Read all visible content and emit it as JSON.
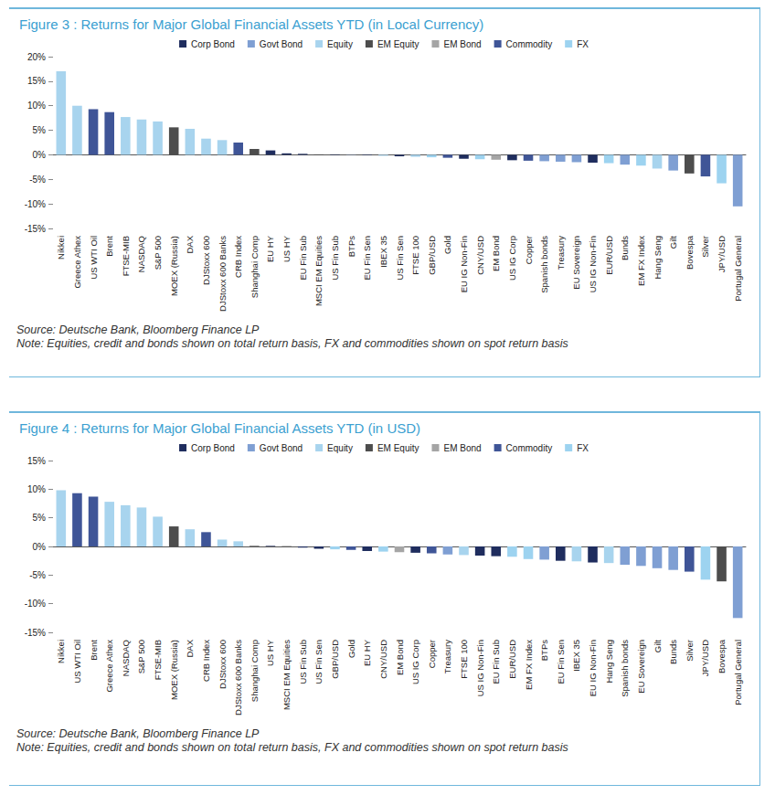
{
  "chart_data": [
    {
      "type": "bar",
      "title": "Figure 3 : Returns for Major Global Financial Assets YTD (in Local Currency)",
      "categories": [
        "Nikkei",
        "Greece Athex",
        "US WTI Oil",
        "Brent",
        "FTSE-MIB",
        "NASDAQ",
        "S&P 500",
        "MOEX (Russia)",
        "DAX",
        "DJStoxx 600",
        "DJStoxx 600 Banks",
        "CRB Index",
        "Shanghai Comp",
        "EU HY",
        "US HY",
        "EU Fin Sub",
        "MSCI EM Equities",
        "US Fin Sub",
        "BTPs",
        "EU Fin Sen",
        "IBEX 35",
        "US Fin Sen",
        "FTSE 100",
        "GBP/USD",
        "Gold",
        "EU IG Non-Fin",
        "CNY/USD",
        "EM Bond",
        "US IG Corp",
        "Copper",
        "Spanish bonds",
        "Treasury",
        "EU Sovereign",
        "US IG Non-Fin",
        "EUR/USD",
        "Bunds",
        "EM FX Index",
        "Hang Seng",
        "Gilt",
        "Bovespa",
        "Silver",
        "JPY/USD",
        "Portugal General"
      ],
      "series": [
        {
          "name": "Corp Bond",
          "color": "#1f2d5e",
          "values": [
            null,
            null,
            null,
            null,
            null,
            null,
            null,
            null,
            null,
            null,
            null,
            null,
            null,
            0.9,
            0.3,
            0.2,
            null,
            0.1,
            null,
            -0.1,
            null,
            -0.3,
            null,
            null,
            null,
            -0.8,
            null,
            null,
            -1.1,
            null,
            null,
            null,
            null,
            -1.6,
            null,
            null,
            null,
            null,
            null,
            null,
            null,
            null,
            null
          ]
        },
        {
          "name": "Govt Bond",
          "color": "#7f9fd3",
          "values": [
            null,
            null,
            null,
            null,
            null,
            null,
            null,
            null,
            null,
            null,
            null,
            null,
            null,
            null,
            null,
            null,
            null,
            null,
            0.05,
            null,
            null,
            null,
            null,
            null,
            null,
            null,
            null,
            null,
            null,
            null,
            -1.3,
            -1.4,
            -1.5,
            null,
            null,
            -2.0,
            null,
            null,
            -3.2,
            null,
            null,
            null,
            -10.5
          ]
        },
        {
          "name": "Equity",
          "color": "#a8d4ee",
          "values": [
            17,
            10,
            null,
            null,
            7.7,
            7.2,
            6.8,
            null,
            5.3,
            3.3,
            3.0,
            null,
            null,
            null,
            null,
            null,
            null,
            null,
            null,
            null,
            -0.2,
            null,
            -0.4,
            null,
            null,
            null,
            null,
            null,
            null,
            null,
            null,
            null,
            null,
            null,
            null,
            null,
            null,
            -2.8,
            null,
            null,
            null,
            null,
            null
          ]
        },
        {
          "name": "EM Equity",
          "color": "#4d4d4d",
          "values": [
            null,
            null,
            null,
            null,
            null,
            null,
            null,
            5.6,
            null,
            null,
            null,
            null,
            1.2,
            null,
            null,
            null,
            0.1,
            null,
            null,
            null,
            null,
            null,
            null,
            null,
            null,
            null,
            null,
            null,
            null,
            null,
            null,
            null,
            null,
            null,
            null,
            null,
            null,
            null,
            null,
            -3.8,
            null,
            null,
            null
          ]
        },
        {
          "name": "EM Bond",
          "color": "#a5a5a5",
          "values": [
            null,
            null,
            null,
            null,
            null,
            null,
            null,
            null,
            null,
            null,
            null,
            null,
            null,
            null,
            null,
            null,
            null,
            null,
            null,
            null,
            null,
            null,
            null,
            null,
            null,
            null,
            null,
            -1.0,
            null,
            null,
            null,
            null,
            null,
            null,
            null,
            null,
            null,
            null,
            null,
            null,
            null,
            null,
            null
          ]
        },
        {
          "name": "Commodity",
          "color": "#3f5597",
          "values": [
            null,
            null,
            9.3,
            8.7,
            null,
            null,
            null,
            null,
            null,
            null,
            null,
            2.5,
            null,
            null,
            null,
            null,
            null,
            null,
            null,
            null,
            null,
            null,
            null,
            null,
            -0.6,
            null,
            null,
            null,
            null,
            -1.2,
            null,
            null,
            null,
            null,
            null,
            null,
            null,
            null,
            null,
            null,
            -4.4,
            null,
            null
          ]
        },
        {
          "name": "FX",
          "color": "#9dd3f0",
          "values": [
            null,
            null,
            null,
            null,
            null,
            null,
            null,
            null,
            null,
            null,
            null,
            null,
            null,
            null,
            null,
            null,
            null,
            null,
            null,
            null,
            null,
            null,
            null,
            -0.5,
            null,
            null,
            -0.9,
            null,
            null,
            null,
            null,
            null,
            null,
            null,
            -1.7,
            null,
            -2.2,
            null,
            null,
            null,
            null,
            -5.8,
            null
          ]
        }
      ],
      "ylim": [
        -15,
        20
      ],
      "yticks": [
        {
          "value": -15,
          "label": "-15%"
        },
        {
          "value": -10,
          "label": "-10%"
        },
        {
          "value": -5,
          "label": "-5%"
        },
        {
          "value": 0,
          "label": "0%"
        },
        {
          "value": 5,
          "label": "5%"
        },
        {
          "value": 10,
          "label": "10%"
        },
        {
          "value": 15,
          "label": "15%"
        },
        {
          "value": 20,
          "label": "20%"
        }
      ],
      "grid": false,
      "legend": "top",
      "stacked": true,
      "annotations": [
        "Source: Deutsche Bank, Bloomberg Finance LP",
        "Note: Equities, credit and bonds shown on total return basis, FX and commodities shown on spot return basis"
      ]
    },
    {
      "type": "bar",
      "title": "Figure 4 : Returns for Major Global Financial Assets YTD (in USD)",
      "categories": [
        "Nikkei",
        "US WTI Oil",
        "Brent",
        "Greece Athex",
        "NASDAQ",
        "S&P 500",
        "FTSE-MIB",
        "MOEX (Russia)",
        "DAX",
        "CRB Index",
        "DJStoxx 600",
        "DJStoxx 600 Banks",
        "Shanghai Comp",
        "US HY",
        "MSCI EM Equities",
        "US Fin Sub",
        "US Fin Sen",
        "GBP/USD",
        "Gold",
        "EU HY",
        "CNY/USD",
        "EM Bond",
        "US IG Corp",
        "Copper",
        "Treasury",
        "FTSE 100",
        "US IG Non-Fin",
        "EU Fin Sub",
        "EUR/USD",
        "EM FX Index",
        "BTPs",
        "EU Fin Sen",
        "IBEX 35",
        "EU IG Non-Fin",
        "Hang Seng",
        "Spanish bonds",
        "EU Sovereign",
        "Gilt",
        "Bunds",
        "Silver",
        "JPY/USD",
        "Bovespa",
        "Portugal General"
      ],
      "series": [
        {
          "name": "Corp Bond",
          "color": "#1f2d5e",
          "values": [
            null,
            null,
            null,
            null,
            null,
            null,
            null,
            null,
            null,
            null,
            null,
            null,
            null,
            0.1,
            null,
            -0.2,
            -0.4,
            null,
            null,
            -0.8,
            null,
            null,
            -1.1,
            null,
            null,
            null,
            -1.6,
            -1.7,
            null,
            null,
            null,
            -2.5,
            null,
            -2.8,
            null,
            null,
            null,
            null,
            null,
            null,
            null,
            null,
            null
          ]
        },
        {
          "name": "Govt Bond",
          "color": "#7f9fd3",
          "values": [
            null,
            null,
            null,
            null,
            null,
            null,
            null,
            null,
            null,
            null,
            null,
            null,
            null,
            null,
            null,
            null,
            null,
            null,
            null,
            null,
            null,
            null,
            null,
            null,
            -1.4,
            null,
            null,
            null,
            null,
            null,
            -2.3,
            null,
            null,
            null,
            null,
            -3.2,
            -3.4,
            -3.8,
            -4.1,
            null,
            null,
            null,
            -12.5
          ]
        },
        {
          "name": "Equity",
          "color": "#a8d4ee",
          "values": [
            9.8,
            null,
            null,
            7.8,
            7.2,
            6.8,
            5.2,
            null,
            3.0,
            null,
            1.2,
            0.9,
            null,
            null,
            null,
            null,
            null,
            null,
            null,
            null,
            null,
            null,
            null,
            null,
            null,
            -1.5,
            null,
            null,
            null,
            null,
            null,
            null,
            -2.6,
            null,
            -2.9,
            null,
            null,
            null,
            null,
            null,
            null,
            null,
            null
          ]
        },
        {
          "name": "EM Equity",
          "color": "#4d4d4d",
          "values": [
            null,
            null,
            null,
            null,
            null,
            null,
            null,
            3.5,
            null,
            null,
            null,
            null,
            0.1,
            null,
            0.05,
            null,
            null,
            null,
            null,
            null,
            null,
            null,
            null,
            null,
            null,
            null,
            null,
            null,
            null,
            null,
            null,
            null,
            null,
            null,
            null,
            null,
            null,
            null,
            null,
            null,
            null,
            -6.1,
            null
          ]
        },
        {
          "name": "EM Bond",
          "color": "#a5a5a5",
          "values": [
            null,
            null,
            null,
            null,
            null,
            null,
            null,
            null,
            null,
            null,
            null,
            null,
            null,
            null,
            null,
            null,
            null,
            null,
            null,
            null,
            null,
            -1.0,
            null,
            null,
            null,
            null,
            null,
            null,
            null,
            null,
            null,
            null,
            null,
            null,
            null,
            null,
            null,
            null,
            null,
            null,
            null,
            null,
            null
          ]
        },
        {
          "name": "Commodity",
          "color": "#3f5597",
          "values": [
            null,
            9.3,
            8.7,
            null,
            null,
            null,
            null,
            null,
            null,
            2.5,
            null,
            null,
            null,
            null,
            null,
            null,
            null,
            null,
            -0.6,
            null,
            null,
            null,
            null,
            -1.2,
            null,
            null,
            null,
            null,
            null,
            null,
            null,
            null,
            null,
            null,
            null,
            null,
            null,
            null,
            null,
            -4.4,
            null,
            null,
            null
          ]
        },
        {
          "name": "FX",
          "color": "#9dd3f0",
          "values": [
            null,
            null,
            null,
            null,
            null,
            null,
            null,
            null,
            null,
            null,
            null,
            null,
            null,
            null,
            null,
            null,
            null,
            -0.5,
            null,
            null,
            -0.9,
            null,
            null,
            null,
            null,
            null,
            null,
            null,
            -1.8,
            -2.2,
            null,
            null,
            null,
            null,
            null,
            null,
            null,
            null,
            null,
            null,
            -5.8,
            null,
            null
          ]
        }
      ],
      "ylim": [
        -15,
        15
      ],
      "yticks": [
        {
          "value": -15,
          "label": "-15%"
        },
        {
          "value": -10,
          "label": "-10%"
        },
        {
          "value": -5,
          "label": "-5%"
        },
        {
          "value": 0,
          "label": "0%"
        },
        {
          "value": 5,
          "label": "5%"
        },
        {
          "value": 10,
          "label": "10%"
        },
        {
          "value": 15,
          "label": "15%"
        }
      ],
      "grid": false,
      "legend": "top",
      "stacked": true,
      "annotations": [
        "Source: Deutsche Bank, Bloomberg Finance LP",
        "Note: Equities, credit and bonds shown on total return basis, FX and commodities shown on spot return basis"
      ]
    }
  ]
}
